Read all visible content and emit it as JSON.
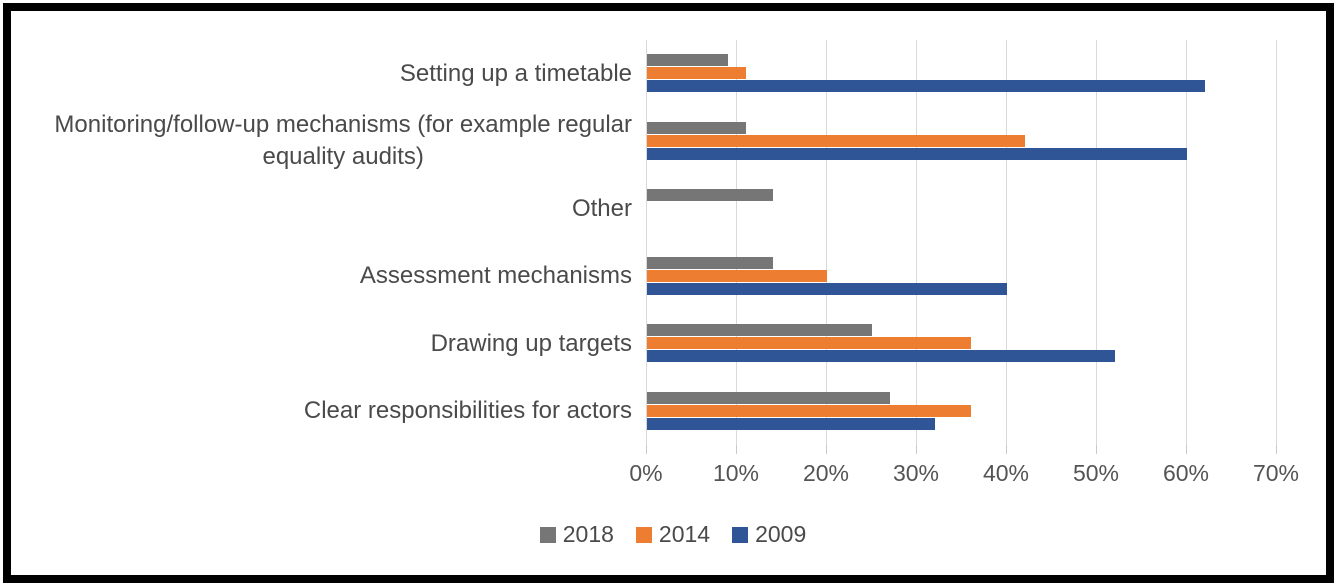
{
  "chart_data": {
    "type": "bar",
    "orientation": "horizontal",
    "title": "",
    "xlabel": "",
    "ylabel": "",
    "xlim": [
      0,
      70
    ],
    "x_tick_labels": [
      "0%",
      "10%",
      "20%",
      "30%",
      "40%",
      "50%",
      "60%",
      "70%"
    ],
    "grid": true,
    "legend_position": "bottom",
    "categories": [
      "Setting up a timetable",
      "Monitoring/follow-up mechanisms (for example regular\nequality audits)",
      "Other",
      "Assessment mechanisms",
      "Drawing up targets",
      "Clear responsibilities for actors"
    ],
    "series": [
      {
        "name": "2018",
        "color": "#767676",
        "values": [
          9,
          11,
          14,
          14,
          25,
          27
        ]
      },
      {
        "name": "2014",
        "color": "#ED7D31",
        "values": [
          11,
          42,
          0,
          20,
          36,
          36
        ]
      },
      {
        "name": "2009",
        "color": "#2F5597",
        "values": [
          62,
          60,
          0,
          40,
          52,
          32
        ]
      }
    ],
    "colors": {
      "gridline": "#d9d9d9",
      "tick": "#c9c9c9",
      "text": "#4a4a4a",
      "frame_border": "#000000",
      "background": "#ffffff"
    }
  }
}
